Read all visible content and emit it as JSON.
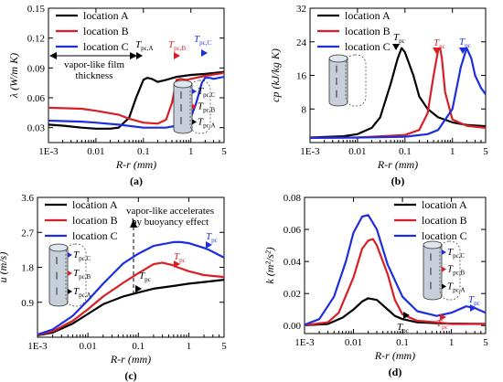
{
  "panels": [
    {
      "id": "a",
      "label": "(a)",
      "ylabel": "λ (W/m K)",
      "xlabel": "R-r (mm)",
      "yticks": [
        "0.03",
        "0.06",
        "0.09",
        "0.12",
        "0.15"
      ],
      "xticks": [
        "1E-3",
        "0.01",
        "0.1",
        "1",
        "5"
      ],
      "legend": [
        "location A",
        "location B",
        "location C"
      ],
      "annotation": "vapor-like film thickness",
      "markers": [
        [
          "T",
          "pc,A"
        ],
        [
          "T",
          "pc,B"
        ],
        [
          "T",
          "pc,C"
        ]
      ]
    },
    {
      "id": "b",
      "label": "(b)",
      "ylabel": "cp (kJ/kg K)",
      "xlabel": "R-r (mm)",
      "yticks": [
        "8",
        "16",
        "24",
        "32"
      ],
      "xticks": [
        "1E-3",
        "0.01",
        "0.1",
        "1",
        "5"
      ],
      "legend": [
        "location A",
        "location B",
        "location C"
      ],
      "markers": [
        [
          "T",
          "pc"
        ],
        [
          "T",
          "pc"
        ],
        [
          "T",
          "pc"
        ]
      ]
    },
    {
      "id": "c",
      "label": "(c)",
      "ylabel": "u (m/s)",
      "xlabel": "R-r (mm)",
      "yticks": [
        "0.9",
        "1.8",
        "2.7",
        "3.6"
      ],
      "xticks": [
        "1E-3",
        "0.01",
        "0.1",
        "1",
        "5"
      ],
      "legend": [
        "location A",
        "location B",
        "location C"
      ],
      "annotation": "vapor-like accelerates by buoyancy effect",
      "markers": [
        [
          "T",
          "pc"
        ],
        [
          "T",
          "pc"
        ],
        [
          "T",
          "pc"
        ]
      ]
    },
    {
      "id": "d",
      "label": "(d)",
      "ylabel": "k (m²/s²)",
      "xlabel": "R-r (mm)",
      "yticks": [
        "0.00",
        "0.02",
        "0.04",
        "0.06",
        "0.08"
      ],
      "xticks": [
        "1E-3",
        "0.01",
        "0.1",
        "1",
        "5"
      ],
      "legend": [
        "location A",
        "location B",
        "location C"
      ],
      "markers": [
        [
          "T",
          "pc"
        ],
        [
          "T",
          "pc"
        ],
        [
          "T",
          "pc"
        ]
      ]
    }
  ],
  "inset_labels": [
    [
      "T",
      "pc,C"
    ],
    [
      "T",
      "pc,B"
    ],
    [
      "T",
      "pc,A"
    ]
  ],
  "colors": {
    "A": "#000000",
    "B": "#d81f26",
    "C": "#1c2ee0"
  },
  "chart_data": [
    {
      "panel": "a",
      "type": "line",
      "title": "",
      "xlabel": "R-r (mm)",
      "ylabel": "λ (W/m K)",
      "xscale": "log",
      "xlim": [
        0.001,
        5
      ],
      "ylim": [
        0.015,
        0.15
      ],
      "grid": false,
      "legend": "top-left",
      "series": [
        {
          "name": "location A",
          "x": [
            0.001,
            0.002,
            0.005,
            0.01,
            0.02,
            0.03,
            0.05,
            0.07,
            0.1,
            0.12,
            0.15,
            0.2,
            0.3,
            0.5,
            1,
            2,
            5
          ],
          "y": [
            0.033,
            0.032,
            0.03,
            0.029,
            0.029,
            0.03,
            0.04,
            0.06,
            0.078,
            0.08,
            0.079,
            0.076,
            0.078,
            0.081,
            0.083,
            0.084,
            0.086
          ]
        },
        {
          "name": "location B",
          "x": [
            0.001,
            0.005,
            0.01,
            0.03,
            0.05,
            0.1,
            0.2,
            0.3,
            0.4,
            0.5,
            0.6,
            0.8,
            1,
            2,
            5
          ],
          "y": [
            0.05,
            0.049,
            0.047,
            0.043,
            0.039,
            0.035,
            0.034,
            0.038,
            0.055,
            0.078,
            0.079,
            0.078,
            0.079,
            0.082,
            0.085
          ]
        },
        {
          "name": "location C",
          "x": [
            0.001,
            0.005,
            0.01,
            0.03,
            0.1,
            0.3,
            0.5,
            1,
            1.3,
            1.7,
            2,
            2.5,
            3,
            5
          ],
          "y": [
            0.037,
            0.036,
            0.035,
            0.033,
            0.03,
            0.03,
            0.032,
            0.04,
            0.055,
            0.075,
            0.08,
            0.08,
            0.079,
            0.081
          ]
        }
      ]
    },
    {
      "panel": "b",
      "type": "line",
      "title": "",
      "xlabel": "R-r (mm)",
      "ylabel": "cp (kJ/kg K)",
      "xscale": "log",
      "xlim": [
        0.001,
        5
      ],
      "ylim": [
        0,
        32
      ],
      "grid": false,
      "legend": "top-left",
      "series": [
        {
          "name": "location A",
          "x": [
            0.001,
            0.005,
            0.01,
            0.02,
            0.03,
            0.05,
            0.07,
            0.085,
            0.1,
            0.15,
            0.2,
            0.3,
            0.5,
            1,
            2,
            5
          ],
          "y": [
            1.2,
            1.5,
            2.0,
            3.5,
            6,
            14,
            20,
            22.5,
            21.5,
            16,
            11,
            8,
            6,
            4.8,
            4.2,
            3.9
          ]
        },
        {
          "name": "location B",
          "x": [
            0.001,
            0.01,
            0.1,
            0.2,
            0.3,
            0.4,
            0.5,
            0.55,
            0.6,
            0.7,
            1,
            2,
            5
          ],
          "y": [
            1.1,
            1.2,
            1.8,
            3,
            7,
            16,
            22,
            22.5,
            20,
            12,
            5.5,
            4,
            3.5
          ]
        },
        {
          "name": "location C",
          "x": [
            0.001,
            0.01,
            0.1,
            0.3,
            0.5,
            1,
            1.5,
            2,
            2.5,
            3,
            4,
            5
          ],
          "y": [
            1.1,
            1.2,
            1.4,
            2,
            3,
            8,
            18,
            22.5,
            20,
            16,
            13,
            11.5
          ]
        }
      ]
    },
    {
      "panel": "c",
      "type": "line",
      "title": "",
      "xlabel": "R-r (mm)",
      "ylabel": "u (m/s)",
      "xscale": "log",
      "xlim": [
        0.001,
        5
      ],
      "ylim": [
        0,
        3.6
      ],
      "grid": false,
      "legend": "top-left",
      "series": [
        {
          "name": "location A",
          "x": [
            0.001,
            0.002,
            0.005,
            0.01,
            0.02,
            0.05,
            0.1,
            0.2,
            0.5,
            1,
            2,
            5
          ],
          "y": [
            0.05,
            0.12,
            0.35,
            0.6,
            0.85,
            1.05,
            1.15,
            1.25,
            1.32,
            1.38,
            1.42,
            1.48
          ]
        },
        {
          "name": "location B",
          "x": [
            0.001,
            0.002,
            0.005,
            0.01,
            0.02,
            0.05,
            0.1,
            0.2,
            0.3,
            0.5,
            0.6,
            1,
            2,
            5
          ],
          "y": [
            0.06,
            0.15,
            0.42,
            0.72,
            1.05,
            1.4,
            1.65,
            1.88,
            1.92,
            1.85,
            1.8,
            1.7,
            1.6,
            1.55
          ]
        },
        {
          "name": "location C",
          "x": [
            0.001,
            0.002,
            0.005,
            0.01,
            0.02,
            0.05,
            0.1,
            0.2,
            0.5,
            0.7,
            1,
            2,
            2.5,
            5
          ],
          "y": [
            0.07,
            0.2,
            0.55,
            0.95,
            1.38,
            1.9,
            2.15,
            2.35,
            2.45,
            2.45,
            2.42,
            2.3,
            2.25,
            2.05
          ]
        }
      ]
    },
    {
      "panel": "d",
      "type": "line",
      "title": "",
      "xlabel": "R-r (mm)",
      "ylabel": "k (m²/s²)",
      "xscale": "log",
      "xlim": [
        0.001,
        5
      ],
      "ylim": [
        -0.005,
        0.08
      ],
      "grid": false,
      "legend": "top-right",
      "series": [
        {
          "name": "location A",
          "x": [
            0.001,
            0.003,
            0.006,
            0.01,
            0.015,
            0.02,
            0.03,
            0.05,
            0.07,
            0.1,
            0.2,
            0.5,
            1,
            5
          ],
          "y": [
            0.0002,
            0.001,
            0.005,
            0.01,
            0.015,
            0.017,
            0.016,
            0.01,
            0.006,
            0.004,
            0.002,
            0.0015,
            0.0012,
            0.001
          ]
        },
        {
          "name": "location B",
          "x": [
            0.001,
            0.003,
            0.005,
            0.01,
            0.015,
            0.02,
            0.025,
            0.03,
            0.05,
            0.07,
            0.1,
            0.2,
            0.5,
            1,
            5
          ],
          "y": [
            0.0002,
            0.002,
            0.008,
            0.03,
            0.048,
            0.053,
            0.054,
            0.05,
            0.032,
            0.016,
            0.007,
            0.003,
            0.002,
            0.001,
            0.001
          ]
        },
        {
          "name": "location C",
          "x": [
            0.001,
            0.002,
            0.004,
            0.007,
            0.01,
            0.015,
            0.02,
            0.03,
            0.05,
            0.1,
            0.2,
            0.5,
            1,
            2,
            3,
            5
          ],
          "y": [
            0.0005,
            0.004,
            0.018,
            0.04,
            0.058,
            0.068,
            0.069,
            0.06,
            0.038,
            0.018,
            0.009,
            0.006,
            0.008,
            0.012,
            0.011,
            0.008
          ]
        }
      ]
    }
  ]
}
